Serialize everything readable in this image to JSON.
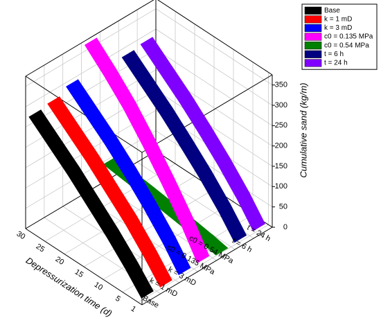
{
  "chart_data": {
    "type": "ribbon3d",
    "x_label": "Depressurization time (d)",
    "z_label": "Cumulative sand (kg/m)",
    "x": [
      1,
      5,
      10,
      15,
      20,
      25,
      30
    ],
    "xlim": [
      0,
      30
    ],
    "xticks": [
      1,
      5,
      10,
      15,
      20,
      25,
      30
    ],
    "zlim": [
      0,
      375
    ],
    "zticks": [
      0,
      50,
      100,
      150,
      200,
      250,
      300,
      350
    ],
    "categories": [
      "Base",
      "k = 1 mD",
      "k = 3 mD",
      "c0 = 0.135 MPa",
      "c0 = 0.54 MPa",
      "t = 6 h",
      "t = 24 h"
    ],
    "series": [
      {
        "name": "Base",
        "color": "#000000",
        "values": [
          5,
          50,
          100,
          145,
          190,
          230,
          270
        ]
      },
      {
        "name": "k = 1 mD",
        "color": "#ff0000",
        "values": [
          5,
          52,
          105,
          150,
          195,
          235,
          275
        ]
      },
      {
        "name": "k = 3 mD",
        "color": "#0000ff",
        "values": [
          8,
          60,
          115,
          165,
          210,
          250,
          290
        ]
      },
      {
        "name": "c0 = 0.135 MPa",
        "color": "#ff00ff",
        "values": [
          10,
          75,
          145,
          210,
          270,
          320,
          365
        ]
      },
      {
        "name": "c0 = 0.54 MPa",
        "color": "#008000",
        "values": [
          2,
          10,
          18,
          25,
          32,
          38,
          44
        ]
      },
      {
        "name": "t = 6 h",
        "color": "#000080",
        "values": [
          6,
          55,
          108,
          155,
          200,
          240,
          280
        ]
      },
      {
        "name": "t = 24 h",
        "color": "#8000ff",
        "values": [
          7,
          58,
          112,
          160,
          205,
          245,
          285
        ]
      }
    ],
    "grid": true,
    "legend": "upper right"
  }
}
